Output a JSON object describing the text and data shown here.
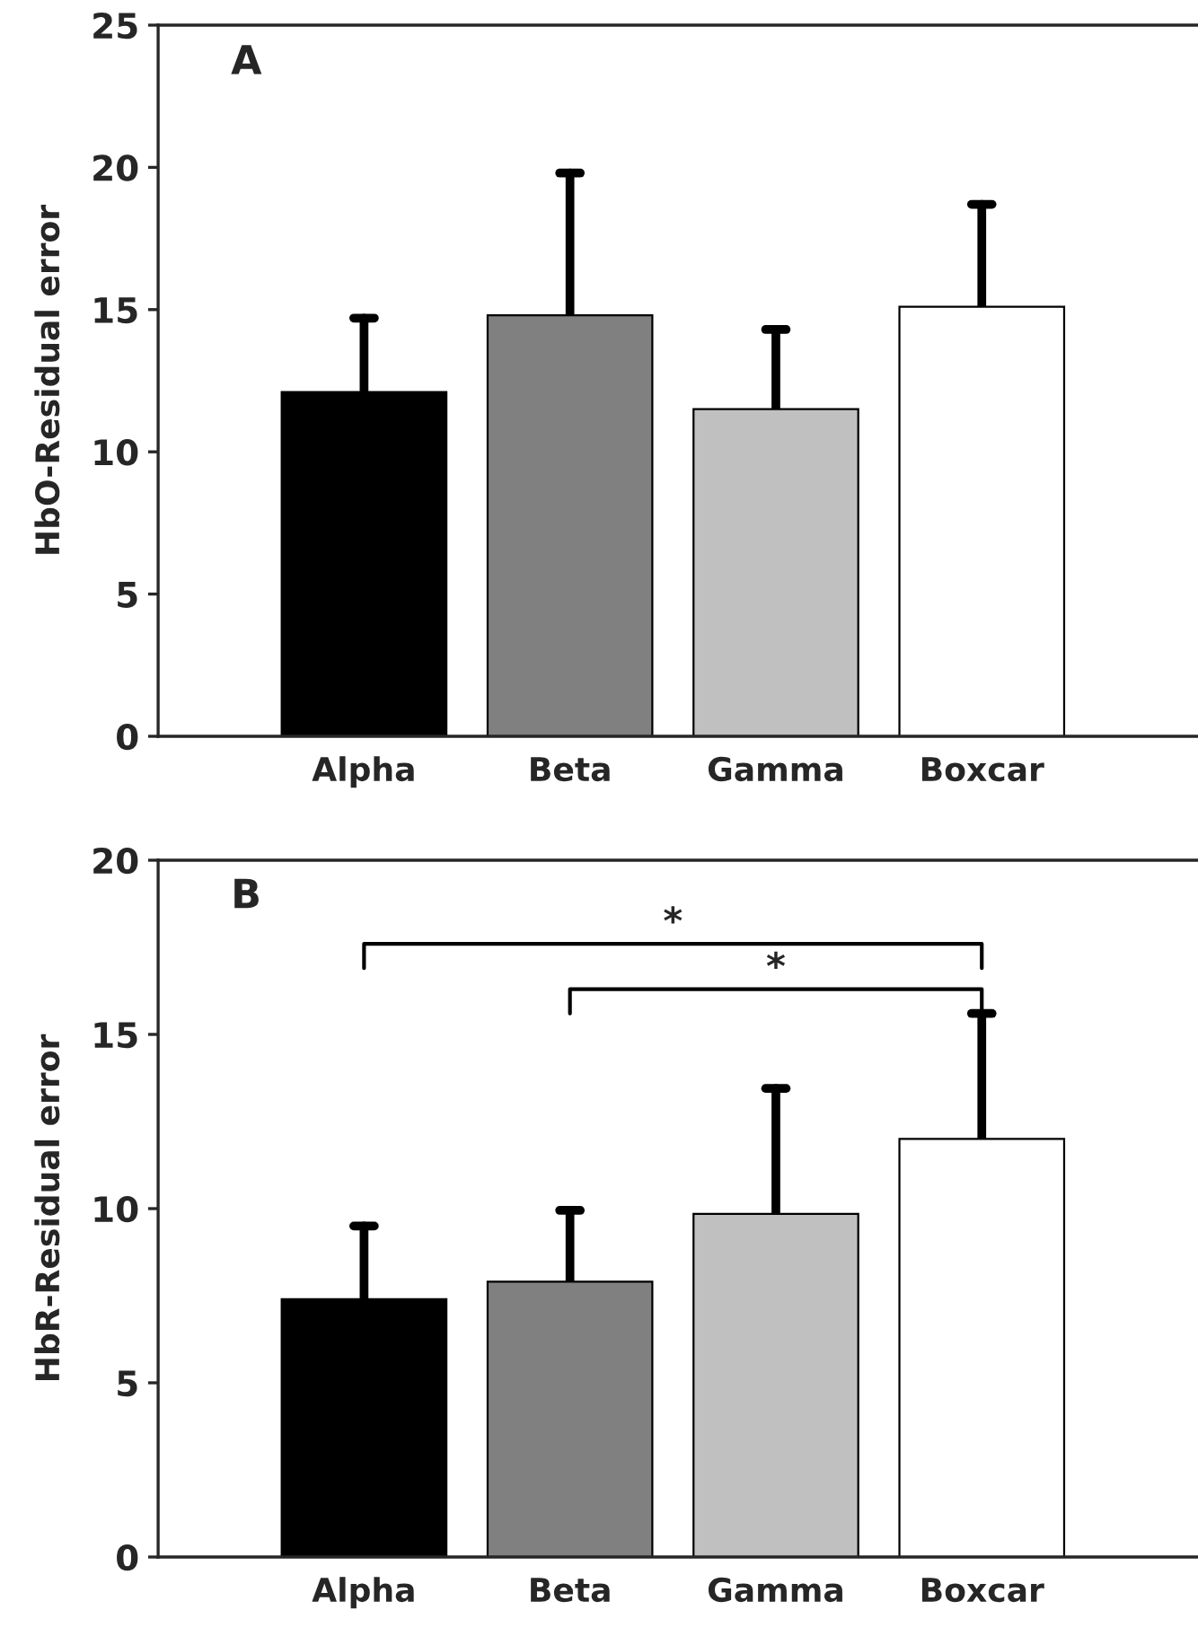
{
  "chart_data": [
    {
      "type": "bar",
      "title": "A",
      "ylabel": "HbO-Residual error",
      "categories": [
        "Alpha",
        "Beta",
        "Gamma",
        "Boxcar"
      ],
      "values": [
        12.1,
        14.8,
        11.5,
        15.1
      ],
      "colors": [
        "#000000",
        "#808080",
        "#c0c0c0",
        "#ffffff"
      ],
      "errors": [
        [
          12.1,
          14.7
        ],
        [
          14.8,
          19.8
        ],
        [
          11.5,
          14.3
        ],
        [
          15.1,
          18.7
        ]
      ],
      "ylim": [
        0,
        25
      ],
      "yticks": [
        0,
        5,
        10,
        15,
        20,
        25
      ],
      "grid": false,
      "legend": false
    },
    {
      "type": "bar",
      "title": "B",
      "ylabel": "HbR-Residual error",
      "categories": [
        "Alpha",
        "Beta",
        "Gamma",
        "Boxcar"
      ],
      "values": [
        7.4,
        7.9,
        9.85,
        12.0
      ],
      "colors": [
        "#000000",
        "#808080",
        "#c0c0c0",
        "#ffffff"
      ],
      "errors": [
        [
          7.4,
          9.5
        ],
        [
          7.9,
          9.95
        ],
        [
          9.85,
          13.45
        ],
        [
          12.0,
          15.6
        ]
      ],
      "ylim": [
        0,
        20
      ],
      "yticks": [
        0,
        5,
        10,
        15,
        20
      ],
      "grid": false,
      "legend": false,
      "annotations": [
        "*",
        "*"
      ]
    }
  ]
}
